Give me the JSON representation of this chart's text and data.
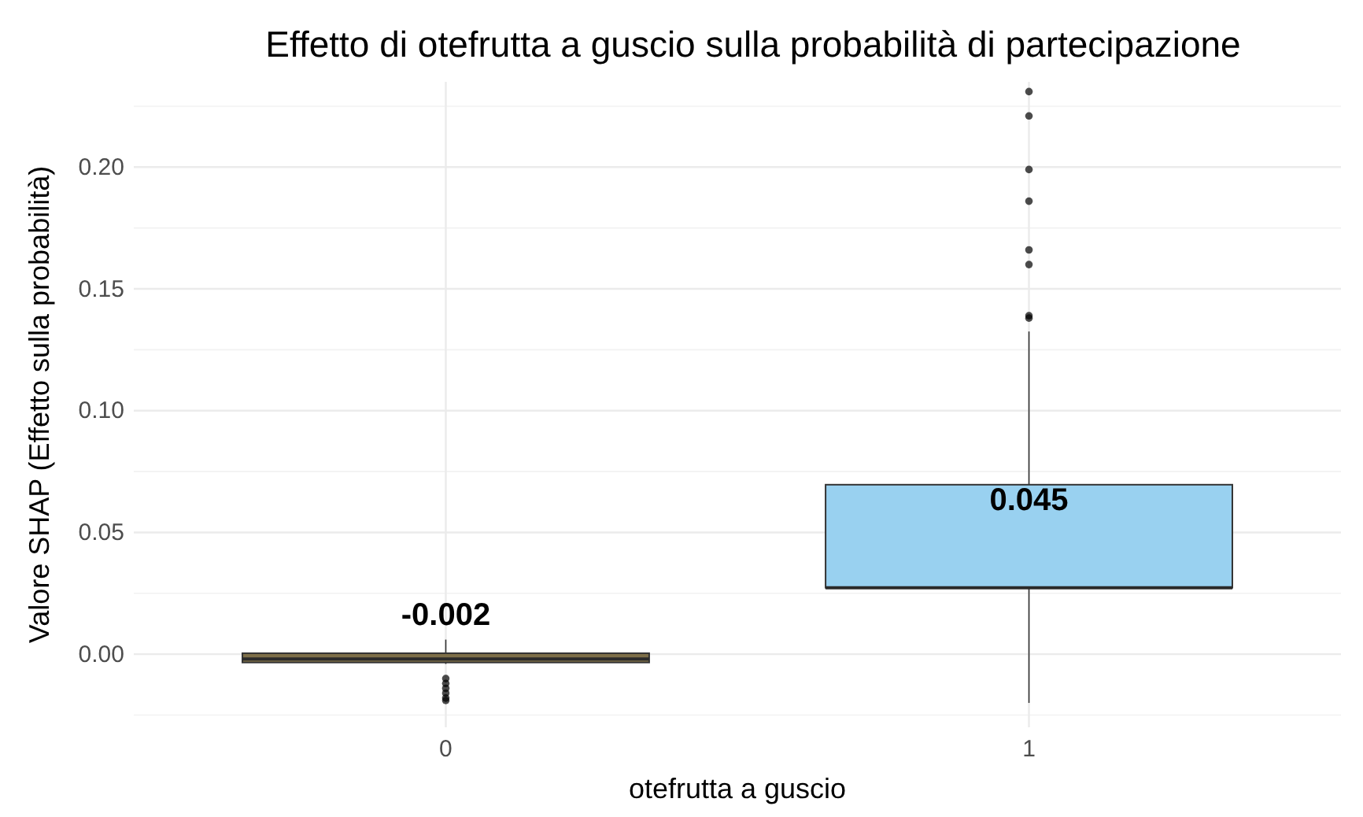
{
  "chart_data": {
    "type": "box",
    "title": "Effetto di otefrutta a guscio sulla probabilità di partecipazione",
    "xlabel": "otefrutta a guscio",
    "ylabel": "Valore SHAP (Effetto sulla probabilità)",
    "categories": [
      "0",
      "1"
    ],
    "boxes": [
      {
        "low": -0.004,
        "q1": -0.0034,
        "median": -0.002,
        "q3": 0.0004,
        "high": 0.006,
        "outliers": [
          -0.01,
          -0.012,
          -0.014,
          -0.016,
          -0.018,
          -0.019
        ]
      },
      {
        "low": -0.02,
        "q1": 0.0273,
        "median": 0.0273,
        "q3": 0.0696,
        "high": 0.1325,
        "outliers": [
          0.138,
          0.139,
          0.16,
          0.166,
          0.186,
          0.199,
          0.221,
          0.231
        ]
      }
    ],
    "colors": [
      "#7d6e48",
      "#99d1f0"
    ],
    "annotations": [
      "-0.002",
      "0.045"
    ],
    "ylim": [
      -0.03,
      0.235
    ],
    "yticks": [
      {
        "value": 0,
        "label": "0.00"
      },
      0.05,
      {
        "value": 0.1,
        "label": "0.10"
      },
      0.15,
      {
        "value": 0.2,
        "label": "0.20"
      }
    ],
    "grid": true
  }
}
